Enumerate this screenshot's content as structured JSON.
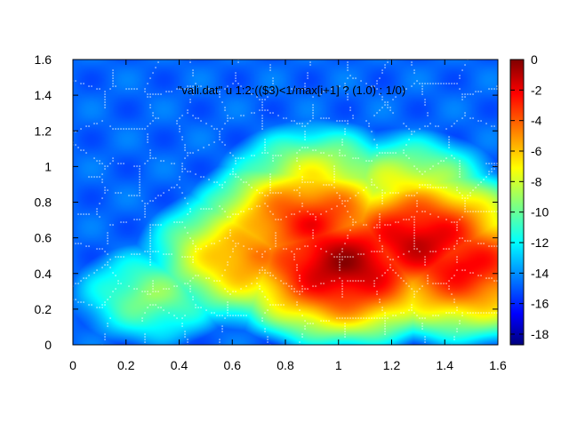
{
  "chart_data": {
    "type": "heatmap",
    "title": "\"vali.dat\" u 1:2:(($3)<1/max[i+1] ? (1.0) : 1/0)",
    "xlabel": "",
    "ylabel": "",
    "xlim": [
      0,
      1.6
    ],
    "ylim": [
      0,
      1.6
    ],
    "x_ticks": [
      "0",
      "0.2",
      "0.4",
      "0.6",
      "0.8",
      "1",
      "1.2",
      "1.4",
      "1.6"
    ],
    "y_ticks": [
      "0",
      "0.2",
      "0.4",
      "0.6",
      "0.8",
      "1",
      "1.2",
      "1.4",
      "1.6"
    ],
    "colorbar": {
      "range": [
        -18.7,
        0
      ],
      "ticks": [
        "0",
        "-2",
        "-4",
        "-6",
        "-8",
        "-10",
        "-12",
        "-14",
        "-16",
        "-18"
      ],
      "colormap": "jet"
    },
    "hotspots": [
      {
        "x": 1.02,
        "y": 0.45,
        "value": -0.5
      },
      {
        "x": 1.3,
        "y": 0.58,
        "value": -1.2
      },
      {
        "x": 0.9,
        "y": 0.68,
        "value": -2.5
      },
      {
        "x": 1.46,
        "y": 0.45,
        "value": -2.0
      },
      {
        "x": 0.68,
        "y": 0.5,
        "value": -4.5
      },
      {
        "x": 0.92,
        "y": 0.9,
        "value": -6.5
      },
      {
        "x": 1.25,
        "y": 0.85,
        "value": -6.5
      },
      {
        "x": 0.3,
        "y": 0.28,
        "value": -9.0
      }
    ],
    "grid": false,
    "overlay": "white dotted cell boundaries",
    "colors": {
      "background_field": "#0a5aff",
      "boundary_lines": "#ffffff"
    }
  }
}
